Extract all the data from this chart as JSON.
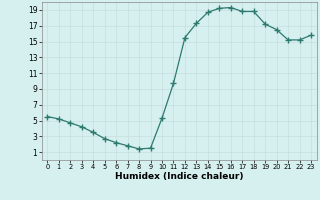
{
  "x": [
    0,
    1,
    2,
    3,
    4,
    5,
    6,
    7,
    8,
    9,
    10,
    11,
    12,
    13,
    14,
    15,
    16,
    17,
    18,
    19,
    20,
    21,
    22,
    23
  ],
  "y": [
    5.5,
    5.2,
    4.7,
    4.2,
    3.5,
    2.7,
    2.2,
    1.8,
    1.4,
    1.5,
    5.3,
    9.7,
    15.5,
    17.3,
    18.7,
    19.2,
    19.3,
    18.8,
    18.8,
    17.2,
    16.5,
    15.2,
    15.2,
    15.8
  ],
  "xlabel": "Humidex (Indice chaleur)",
  "xlim": [
    -0.5,
    23.5
  ],
  "ylim": [
    0,
    20
  ],
  "yticks": [
    1,
    3,
    5,
    7,
    9,
    11,
    13,
    15,
    17,
    19
  ],
  "xticks": [
    0,
    1,
    2,
    3,
    4,
    5,
    6,
    7,
    8,
    9,
    10,
    11,
    12,
    13,
    14,
    15,
    16,
    17,
    18,
    19,
    20,
    21,
    22,
    23
  ],
  "line_color": "#2d7a6e",
  "marker": "+",
  "marker_size": 4.0,
  "bg_color": "#d6f0ef",
  "grid_color": "#c8dede",
  "xlabel_fontsize": 6.5,
  "tick_fontsize_x": 4.8,
  "tick_fontsize_y": 5.5
}
